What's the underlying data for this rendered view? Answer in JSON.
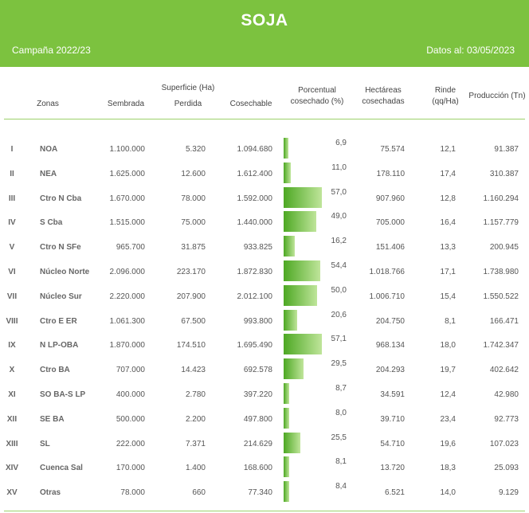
{
  "header": {
    "title": "SOJA",
    "campaign": "Campaña 2022/23",
    "date": "Datos al: 03/05/2023"
  },
  "columns": {
    "zonas": "Zonas",
    "superficie": "Superficie (Ha)",
    "sembrada": "Sembrada",
    "perdida": "Perdida",
    "cosechable": "Cosechable",
    "porcentual_1": "Porcentual",
    "porcentual_2": "cosechado (%)",
    "hectareas_1": "Hectáreas",
    "hectareas_2": "cosechadas",
    "rinde_1": "Rinde",
    "rinde_2": "(qq/Ha)",
    "produccion": "Producción (Tn)"
  },
  "rows": [
    {
      "roman": "I",
      "zone": "NOA",
      "sembrada": "1.100.000",
      "perdida": "5.320",
      "cosechable": "1.094.680",
      "pct": "6,9",
      "pct_value": 6.9,
      "hectareas": "75.574",
      "rinde": "12,1",
      "produccion": "91.387"
    },
    {
      "roman": "II",
      "zone": "NEA",
      "sembrada": "1.625.000",
      "perdida": "12.600",
      "cosechable": "1.612.400",
      "pct": "11,0",
      "pct_value": 11.0,
      "hectareas": "178.110",
      "rinde": "17,4",
      "produccion": "310.387"
    },
    {
      "roman": "III",
      "zone": "Ctro N Cba",
      "sembrada": "1.670.000",
      "perdida": "78.000",
      "cosechable": "1.592.000",
      "pct": "57,0",
      "pct_value": 57.0,
      "hectareas": "907.960",
      "rinde": "12,8",
      "produccion": "1.160.294"
    },
    {
      "roman": "IV",
      "zone": "S Cba",
      "sembrada": "1.515.000",
      "perdida": "75.000",
      "cosechable": "1.440.000",
      "pct": "49,0",
      "pct_value": 49.0,
      "hectareas": "705.000",
      "rinde": "16,4",
      "produccion": "1.157.779"
    },
    {
      "roman": "V",
      "zone": "Ctro N SFe",
      "sembrada": "965.700",
      "perdida": "31.875",
      "cosechable": "933.825",
      "pct": "16,2",
      "pct_value": 16.2,
      "hectareas": "151.406",
      "rinde": "13,3",
      "produccion": "200.945"
    },
    {
      "roman": "VI",
      "zone": "Núcleo Norte",
      "sembrada": "2.096.000",
      "perdida": "223.170",
      "cosechable": "1.872.830",
      "pct": "54,4",
      "pct_value": 54.4,
      "hectareas": "1.018.766",
      "rinde": "17,1",
      "produccion": "1.738.980"
    },
    {
      "roman": "VII",
      "zone": "Núcleo Sur",
      "sembrada": "2.220.000",
      "perdida": "207.900",
      "cosechable": "2.012.100",
      "pct": "50,0",
      "pct_value": 50.0,
      "hectareas": "1.006.710",
      "rinde": "15,4",
      "produccion": "1.550.522"
    },
    {
      "roman": "VIII",
      "zone": "Ctro E ER",
      "sembrada": "1.061.300",
      "perdida": "67.500",
      "cosechable": "993.800",
      "pct": "20,6",
      "pct_value": 20.6,
      "hectareas": "204.750",
      "rinde": "8,1",
      "produccion": "166.471"
    },
    {
      "roman": "IX",
      "zone": "N LP-OBA",
      "sembrada": "1.870.000",
      "perdida": "174.510",
      "cosechable": "1.695.490",
      "pct": "57,1",
      "pct_value": 57.1,
      "hectareas": "968.134",
      "rinde": "18,0",
      "produccion": "1.742.347"
    },
    {
      "roman": "X",
      "zone": "Ctro BA",
      "sembrada": "707.000",
      "perdida": "14.423",
      "cosechable": "692.578",
      "pct": "29,5",
      "pct_value": 29.5,
      "hectareas": "204.293",
      "rinde": "19,7",
      "produccion": "402.642"
    },
    {
      "roman": "XI",
      "zone": "SO BA-S LP",
      "sembrada": "400.000",
      "perdida": "2.780",
      "cosechable": "397.220",
      "pct": "8,7",
      "pct_value": 8.7,
      "hectareas": "34.591",
      "rinde": "12,4",
      "produccion": "42.980"
    },
    {
      "roman": "XII",
      "zone": "SE BA",
      "sembrada": "500.000",
      "perdida": "2.200",
      "cosechable": "497.800",
      "pct": "8,0",
      "pct_value": 8.0,
      "hectareas": "39.710",
      "rinde": "23,4",
      "produccion": "92.773"
    },
    {
      "roman": "XIII",
      "zone": "SL",
      "sembrada": "222.000",
      "perdida": "7.371",
      "cosechable": "214.629",
      "pct": "25,5",
      "pct_value": 25.5,
      "hectareas": "54.710",
      "rinde": "19,6",
      "produccion": "107.023"
    },
    {
      "roman": "XIV",
      "zone": "Cuenca Sal",
      "sembrada": "170.000",
      "perdida": "1.400",
      "cosechable": "168.600",
      "pct": "8,1",
      "pct_value": 8.1,
      "hectareas": "13.720",
      "rinde": "18,3",
      "produccion": "25.093"
    },
    {
      "roman": "XV",
      "zone": "Otras",
      "sembrada": "78.000",
      "perdida": "660",
      "cosechable": "77.340",
      "pct": "8,4",
      "pct_value": 8.4,
      "hectareas": "6.521",
      "rinde": "14,0",
      "produccion": "9.129"
    }
  ],
  "colors": {
    "header_bg": "#7cc23f",
    "bar_dark": "#4da823",
    "bar_light": "#bfe59a"
  }
}
